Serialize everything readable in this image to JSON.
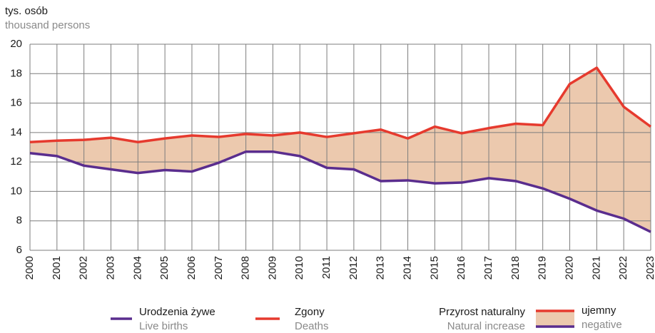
{
  "chart_data": {
    "type": "line",
    "y_label": "tys. osób",
    "y_label_en": "thousand persons",
    "categories": [
      "2000",
      "2001",
      "2002",
      "2003",
      "2004",
      "2005",
      "2006",
      "2007",
      "2008",
      "2009",
      "2010",
      "2011",
      "2012",
      "2013",
      "2014",
      "2015",
      "2016",
      "2017",
      "2018",
      "2019",
      "2020",
      "2021",
      "2022",
      "2023"
    ],
    "series": [
      {
        "name": "Urodzenia żywe",
        "name_en": "Live births",
        "color": "#5a2d8e",
        "values": [
          12.6,
          12.4,
          11.75,
          11.5,
          11.25,
          11.45,
          11.35,
          11.95,
          12.7,
          12.7,
          12.4,
          11.6,
          11.5,
          10.7,
          10.75,
          10.55,
          10.6,
          10.9,
          10.7,
          10.2,
          9.5,
          8.7,
          8.15,
          7.25
        ]
      },
      {
        "name": "Zgony",
        "name_en": "Deaths",
        "color": "#e63a2e",
        "values": [
          13.35,
          13.45,
          13.5,
          13.65,
          13.35,
          13.6,
          13.8,
          13.7,
          13.9,
          13.8,
          14.0,
          13.7,
          13.95,
          14.2,
          13.6,
          14.4,
          13.95,
          14.3,
          14.6,
          14.5,
          17.3,
          18.4,
          15.75,
          14.4
        ]
      }
    ],
    "fill": {
      "label": "Przyrost naturalny",
      "label_en": "Natural increase",
      "sublabel": "ujemny",
      "sublabel_en": "negative",
      "color": "#ecc9ae"
    },
    "ylim": [
      6,
      20
    ],
    "yticks": [
      6,
      8,
      10,
      12,
      14,
      16,
      18,
      20
    ],
    "grid": true
  }
}
